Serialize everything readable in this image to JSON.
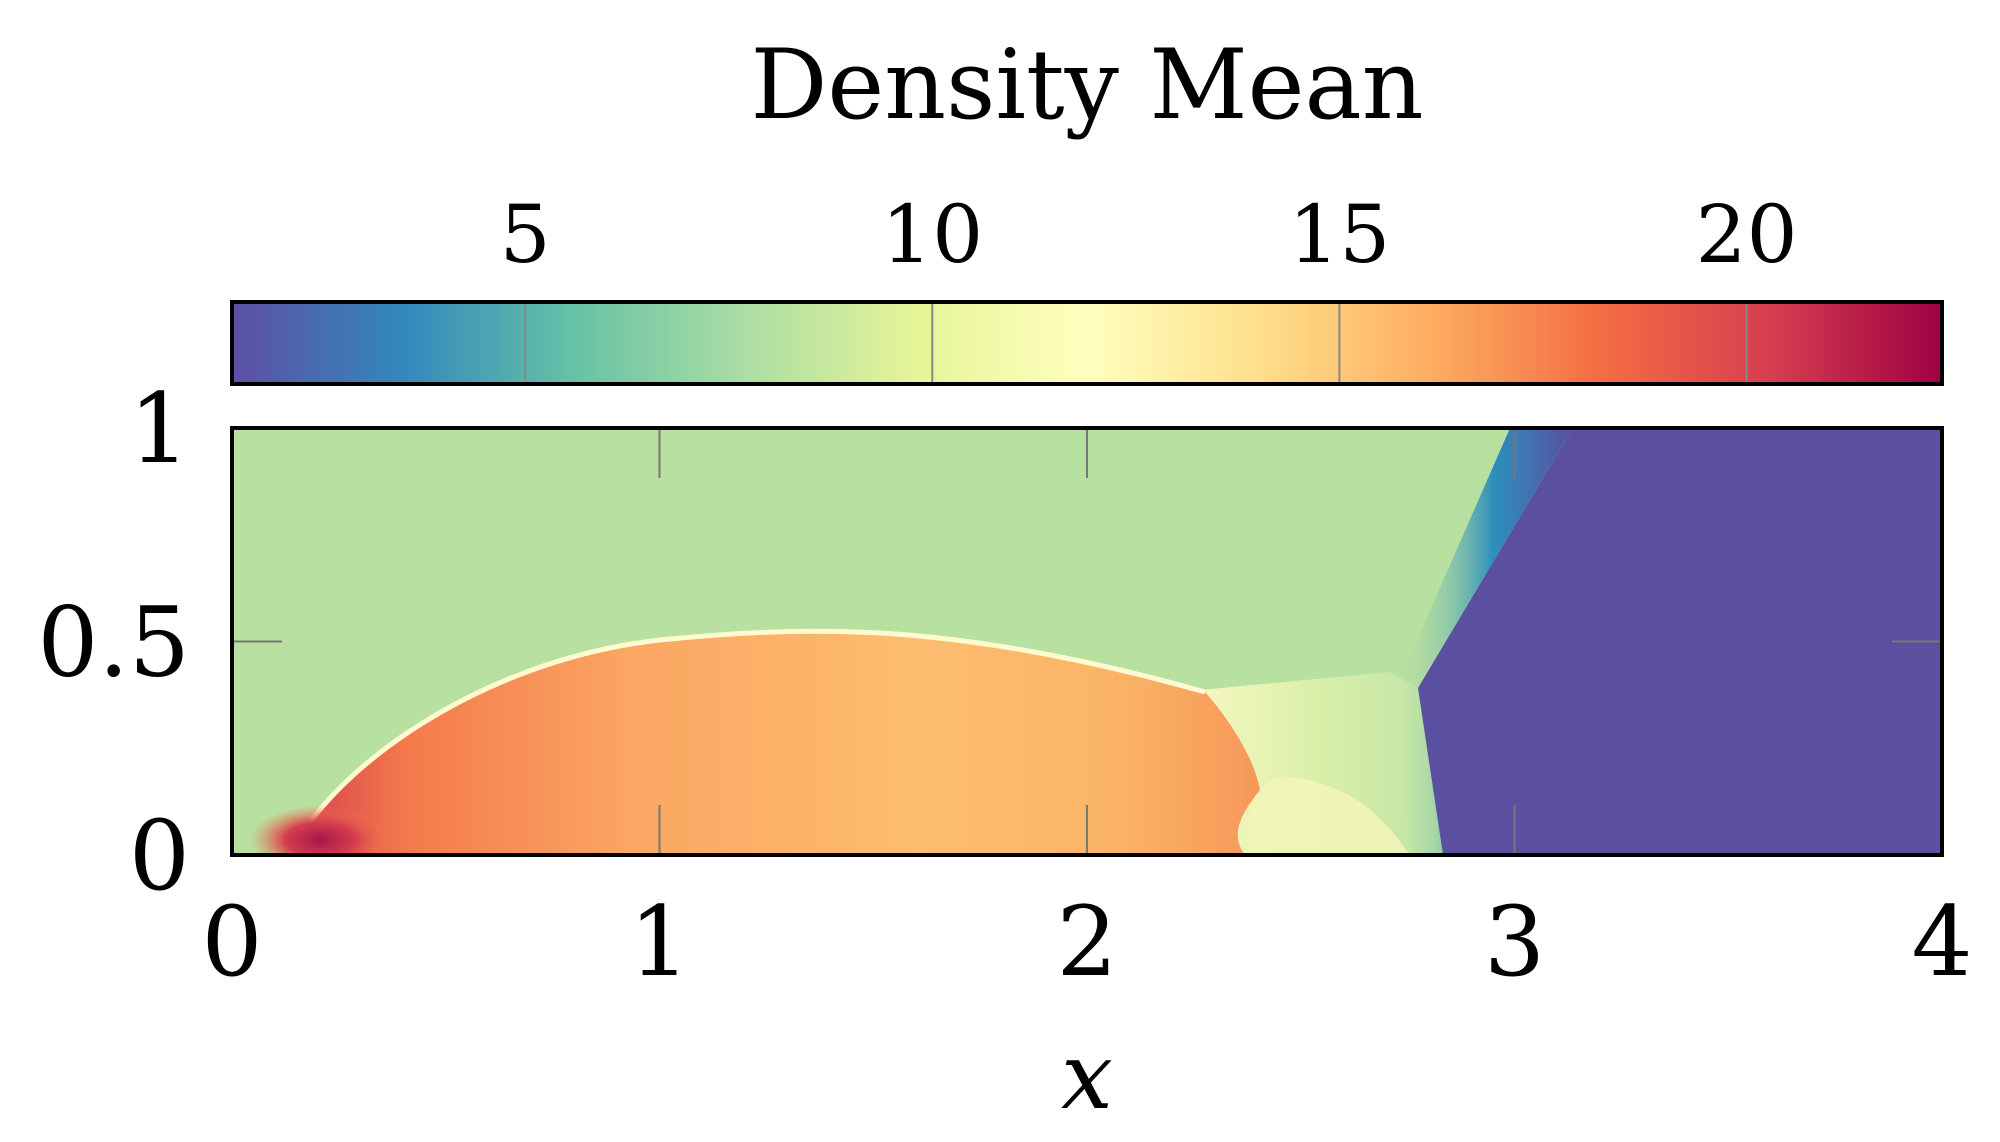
{
  "chart_data": {
    "type": "heatmap",
    "title": "Density Mean",
    "xlabel": "x",
    "ylabel": "",
    "xlim": [
      0,
      4
    ],
    "ylim": [
      0,
      1
    ],
    "x_ticks": [
      0,
      1,
      2,
      3,
      4
    ],
    "y_ticks": [
      0,
      0.5,
      1
    ],
    "x_tick_labels": [
      "0",
      "1",
      "2",
      "3",
      "4"
    ],
    "y_tick_labels": [
      "0",
      "0.5",
      "1"
    ],
    "colorbar": {
      "orientation": "horizontal",
      "location": "top",
      "range": [
        1.4,
        22.4
      ],
      "ticks": [
        5,
        10,
        15,
        20
      ],
      "tick_labels": [
        "5",
        "10",
        "15",
        "20"
      ],
      "colormap": "Spectral_r",
      "stops": [
        "#5e4fa2",
        "#3288bd",
        "#66c2a5",
        "#abdda4",
        "#e6f598",
        "#ffffbf",
        "#fee08b",
        "#fdae61",
        "#f46d43",
        "#d53e4f",
        "#9e0142"
      ]
    },
    "regions": [
      {
        "name": "ambient",
        "value": 8.0,
        "color": "#b8e0a0"
      },
      {
        "name": "shocked-layer",
        "value": 15.5,
        "color": "#fcbd70"
      },
      {
        "name": "stagnation-peak",
        "value": 22,
        "color": "#b8184c"
      },
      {
        "name": "low-density-region",
        "value": 1.4,
        "color": "#5b4fa0"
      }
    ],
    "shock_boundary_x": [
      0.13,
      0.5,
      1.0,
      1.5,
      2.0,
      2.28
    ],
    "shock_boundary_y": [
      0.01,
      0.34,
      0.49,
      0.52,
      0.47,
      0.38
    ],
    "discontinuity_x": [
      2.83,
      2.78,
      3.13
    ],
    "discontinuity_y": [
      0.0,
      0.41,
      1.0
    ]
  }
}
